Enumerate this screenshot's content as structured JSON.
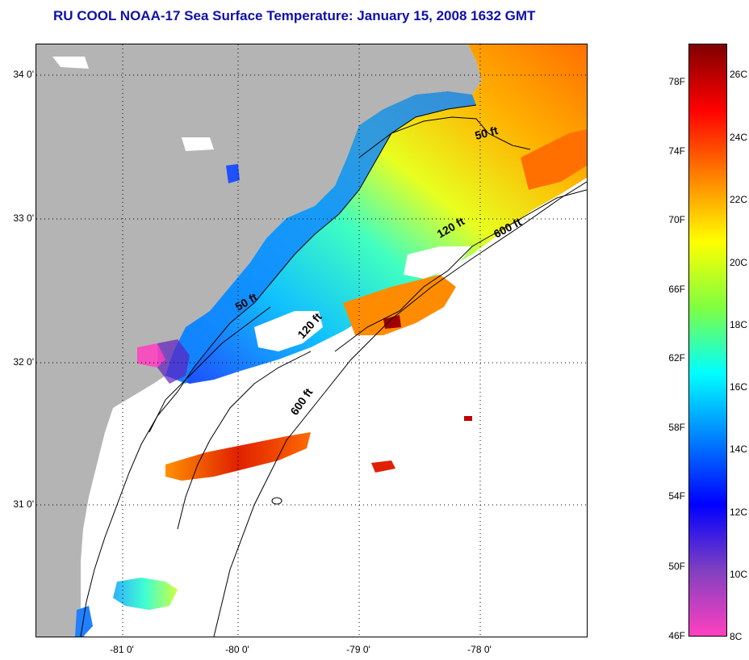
{
  "title": "RU COOL  NOAA-17  Sea Surface Temperature:  January 15, 2008 1632 GMT",
  "map": {
    "lat_labels": [
      "34 0'",
      "33 0'",
      "32 0'",
      "31 0'"
    ],
    "lon_labels": [
      "-81 0'",
      "-80 0'",
      "-79 0'",
      "-78 0'"
    ],
    "isobath_labels": [
      "50 ft",
      "120 ft",
      "600 ft",
      "50 ft",
      "120 ft",
      "600 ft"
    ],
    "colors": {
      "land": "#b4b4b4",
      "cloud": "#ffffff",
      "contour": "#000000"
    }
  },
  "colorbar": {
    "fahrenheit_labels": [
      "78F",
      "74F",
      "70F",
      "66F",
      "62F",
      "58F",
      "54F",
      "50F",
      "46F"
    ],
    "celsius_labels": [
      "26C",
      "24C",
      "22C",
      "20C",
      "18C",
      "16C",
      "14C",
      "12C",
      "10C",
      "8C"
    ],
    "gradient_top_to_bottom": [
      "#800000",
      "#ff0000",
      "#ff8000",
      "#ffff00",
      "#80ff40",
      "#00ffff",
      "#0080ff",
      "#0000ff",
      "#8040c0",
      "#ff40c0"
    ]
  }
}
